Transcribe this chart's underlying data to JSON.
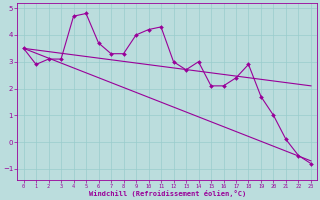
{
  "x": [
    0,
    1,
    2,
    3,
    4,
    5,
    6,
    7,
    8,
    9,
    10,
    11,
    12,
    13,
    14,
    15,
    16,
    17,
    18,
    19,
    20,
    21,
    22,
    23
  ],
  "y_data": [
    3.5,
    2.9,
    3.1,
    3.1,
    4.7,
    4.8,
    3.7,
    3.3,
    3.3,
    4.0,
    4.2,
    4.3,
    3.0,
    2.7,
    3.0,
    2.1,
    2.1,
    2.4,
    2.9,
    1.7,
    1.0,
    0.1,
    -0.5,
    -0.8
  ],
  "line1": [
    [
      0,
      3.5
    ],
    [
      23,
      -0.7
    ]
  ],
  "line2": [
    [
      0,
      3.5
    ],
    [
      23,
      2.1
    ]
  ],
  "color": "#990099",
  "bg_color": "#bbdddd",
  "grid_color": "#99cccc",
  "ylim": [
    -1.4,
    5.2
  ],
  "xlim": [
    -0.5,
    23.5
  ],
  "yticks": [
    -1,
    0,
    1,
    2,
    3,
    4,
    5
  ],
  "xticks": [
    0,
    1,
    2,
    3,
    4,
    5,
    6,
    7,
    8,
    9,
    10,
    11,
    12,
    13,
    14,
    15,
    16,
    17,
    18,
    19,
    20,
    21,
    22,
    23
  ],
  "xlabel": "Windchill (Refroidissement éolien,°C)",
  "ylabel_ticks": [
    "-1",
    "0",
    "1",
    "2",
    "3",
    "4",
    "5"
  ]
}
